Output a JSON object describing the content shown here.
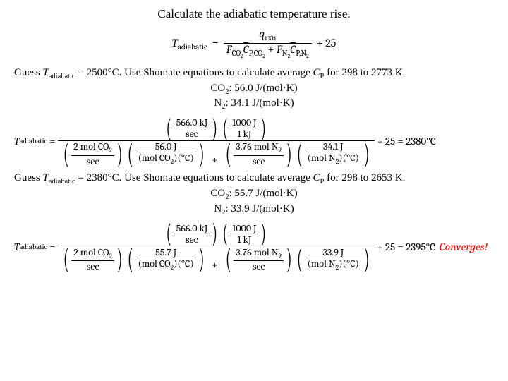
{
  "title": "Calculate the adiabatic temperature rise.",
  "main_eq": {
    "lhs_sym": "T",
    "lhs_sub": "adiabatic",
    "q_sym": "q",
    "q_sub": "rxn",
    "F1": "F",
    "F1_sub": "CO",
    "F1_sub2": "2",
    "C1": "C",
    "C1_txt": "P,CO",
    "C1_sub2": "2",
    "F2": "F",
    "F2_sub": "N",
    "F2_sub2": "2",
    "C2": "C",
    "C2_txt": "P,N",
    "C2_sub2": "2",
    "tail": "+ 25"
  },
  "guess1": {
    "prefix": "Guess ",
    "T": "T",
    "Tsub": "adiabatic",
    "eqval": " = 2500°C.  Use Shomate equations to calculate average ",
    "Cp": "C",
    "Cpsub": "P",
    "tail": " for 298 to 2773 K.",
    "co2": "CO",
    "co2_sub": "2",
    "co2_val": ":  56.0 J/(mol·K)",
    "n2": "N",
    "n2_sub": "2",
    "n2_val": ":  34.1 J/(mol·K)"
  },
  "calc1": {
    "q_top": "566.0 kJ",
    "q_bot": "sec",
    "conv_top": "1000 J",
    "conv_bot": "1 kJ",
    "f_co2_top": "2 mol CO",
    "f_co2_bot": "sec",
    "cp_co2_top": "56.0 J",
    "cp_co2_bot": "(mol CO",
    "cp_co2_bot_tail": ")(°C)",
    "f_n2_top": "3.76 mol N",
    "f_n2_bot": "sec",
    "cp_n2_top": "34.1 J",
    "cp_n2_bot": "(mol N",
    "cp_n2_bot_tail": ")(°C)",
    "tail": "+ 25 = 2380°C"
  },
  "guess2": {
    "prefix": "Guess ",
    "T": "T",
    "Tsub": "adiabatic",
    "eqval": " = 2380°C.  Use Shomate equations to calculate average ",
    "Cp": "C",
    "Cpsub": "P",
    "tail": " for 298 to 2653 K.",
    "co2": "CO",
    "co2_sub": "2",
    "co2_val": ":  55.7 J/(mol·K)",
    "n2": "N",
    "n2_sub": "2",
    "n2_val": ":  33.9 J/(mol·K)"
  },
  "calc2": {
    "q_top": "566.0 kJ",
    "q_bot": "sec",
    "conv_top": "1000 J",
    "conv_bot": "1 kJ",
    "f_co2_top": "2 mol CO",
    "f_co2_bot": "sec",
    "cp_co2_top": "55.7 J",
    "cp_co2_bot": "(mol CO",
    "cp_co2_bot_tail": ")(°C)",
    "f_n2_top": "3.76 mol N",
    "f_n2_bot": "sec",
    "cp_n2_top": "33.9 J",
    "cp_n2_bot": "(mol N",
    "cp_n2_bot_tail": ")(°C)",
    "tail": "+ 25 = 2395°C"
  },
  "converges": "Converges!",
  "colors": {
    "text": "#000000",
    "bg": "#ffffff",
    "accent": "#ff0000"
  }
}
